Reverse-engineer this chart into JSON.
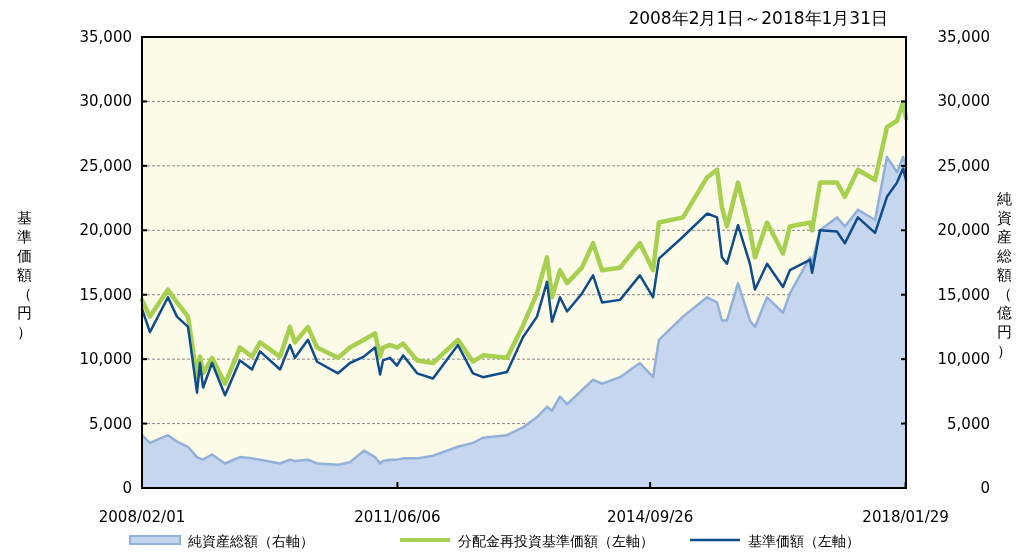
{
  "chart_data": {
    "type": "line",
    "title": "2008年2月1日～2018年1月31日",
    "ylabel": "基準価額（円）",
    "y2label": "純資産総額（億円）",
    "x": [
      "2008-02-01",
      "2008-03-10",
      "2008-06-04",
      "2008-07-17",
      "2008-09-08",
      "2008-10-21",
      "2008-11-04",
      "2008-11-19",
      "2009-01-01",
      "2009-03-04",
      "2009-05-14",
      "2009-07-11",
      "2009-08-18",
      "2009-11-22",
      "2010-01-08",
      "2010-02-01",
      "2010-04-04",
      "2010-05-18",
      "2010-08-26",
      "2010-10-22",
      "2010-12-28",
      "2011-02-19",
      "2011-03-15",
      "2011-03-29",
      "2011-05-01",
      "2011-06-04",
      "2011-07-03",
      "2011-09-08",
      "2011-11-23",
      "2012-03-21",
      "2012-06-01",
      "2012-07-19",
      "2012-11-11",
      "2013-01-26",
      "2013-04-03",
      "2013-05-21",
      "2013-06-14",
      "2013-07-22",
      "2013-08-25",
      "2013-11-04",
      "2013-12-27",
      "2014-02-08",
      "2014-05-05",
      "2014-08-08",
      "2014-10-10",
      "2014-11-07",
      "2015-03-02",
      "2015-06-25",
      "2015-08-12",
      "2015-09-04",
      "2015-09-28",
      "2015-11-20",
      "2016-01-16",
      "2016-02-09",
      "2016-04-07",
      "2016-06-22",
      "2016-07-25",
      "2016-10-29",
      "2016-11-08",
      "2016-12-16",
      "2017-03-07",
      "2017-04-14",
      "2017-06-15",
      "2017-09-05",
      "2017-11-01",
      "2017-12-19",
      "2018-01-17",
      "2018-01-31"
    ],
    "series": [
      {
        "name": "純資産総額（右軸）",
        "type": "area",
        "axis": "y2",
        "color": "#93b0d8",
        "values": [
          4100,
          3500,
          4100,
          3600,
          3200,
          2400,
          2300,
          2200,
          2600,
          1900,
          2400,
          2300,
          2200,
          1900,
          2200,
          2100,
          2200,
          1900,
          1800,
          2000,
          2900,
          2400,
          1900,
          2100,
          2200,
          2200,
          2300,
          2300,
          2500,
          3200,
          3500,
          3900,
          4100,
          4700,
          5500,
          6300,
          6000,
          7100,
          6500,
          7600,
          8400,
          8100,
          8600,
          9700,
          8600,
          11500,
          13300,
          14800,
          14400,
          13000,
          13000,
          15900,
          13000,
          12500,
          14800,
          13600,
          15100,
          17900,
          17500,
          20000,
          21000,
          20300,
          21600,
          20800,
          25700,
          24500,
          25700,
          25000
        ]
      },
      {
        "name": "分配金再投資基準価額（左軸）",
        "type": "line",
        "color": "#a8d050",
        "values": [
          14600,
          13300,
          15400,
          14400,
          13300,
          8600,
          10200,
          8900,
          10100,
          8100,
          10900,
          10200,
          11300,
          10200,
          12500,
          11300,
          12500,
          10900,
          10100,
          10900,
          11500,
          12000,
          10200,
          10900,
          11100,
          10900,
          11200,
          9900,
          9700,
          11500,
          9800,
          10300,
          10100,
          12600,
          15100,
          17900,
          14800,
          16900,
          15900,
          17100,
          19000,
          16900,
          17100,
          19000,
          16900,
          20600,
          21000,
          24100,
          24700,
          21800,
          20300,
          23700,
          20000,
          17900,
          20600,
          18200,
          20300,
          20600,
          20000,
          23700,
          23700,
          22600,
          24700,
          23900,
          28000,
          28500,
          29900,
          28700
        ]
      },
      {
        "name": "基準価額（左軸）",
        "type": "line",
        "color": "#0f4c8c",
        "values": [
          13900,
          12100,
          14800,
          13300,
          12500,
          7400,
          9700,
          7800,
          9700,
          7200,
          9900,
          9200,
          10600,
          9200,
          11100,
          10100,
          11500,
          9800,
          8900,
          9700,
          10200,
          10900,
          8800,
          9900,
          10100,
          9500,
          10300,
          8900,
          8500,
          11100,
          8900,
          8600,
          9000,
          11700,
          13300,
          16000,
          12900,
          14800,
          13700,
          15100,
          16500,
          14400,
          14600,
          16500,
          14800,
          17800,
          19500,
          21300,
          21000,
          17900,
          17400,
          20400,
          17400,
          15400,
          17400,
          15600,
          16900,
          17700,
          16700,
          20000,
          19900,
          19000,
          21000,
          19800,
          22600,
          23700,
          24800,
          23900
        ]
      }
    ],
    "xlim": [
      "2008-02-01",
      "2018-01-31"
    ],
    "xticks": [
      {
        "value": "2008-02-01",
        "label": "2008/02/01"
      },
      {
        "value": "2011-06-06",
        "label": "2011/06/06"
      },
      {
        "value": "2014-09-26",
        "label": "2014/09/26"
      },
      {
        "value": "2018-01-29",
        "label": "2018/01/29"
      }
    ],
    "ylim": [
      0,
      35000
    ],
    "yticks": [
      0,
      {
        "value": 5000,
        "label": "5,000"
      },
      {
        "value": 10000,
        "label": "10,000"
      },
      {
        "value": 15000,
        "label": "15,000"
      },
      {
        "value": 20000,
        "label": "20,000"
      },
      {
        "value": 25000,
        "label": "25,000"
      },
      {
        "value": 30000,
        "label": "30,000"
      },
      {
        "value": 35000,
        "label": "35,000"
      }
    ],
    "y2lim": [
      0,
      35000
    ],
    "y2ticks": [
      0,
      {
        "value": 5000,
        "label": "5,000"
      },
      {
        "value": 10000,
        "label": "10,000"
      },
      {
        "value": 15000,
        "label": "15,000"
      },
      {
        "value": 20000,
        "label": "20,000"
      },
      {
        "value": 25000,
        "label": "25,000"
      },
      {
        "value": 30000,
        "label": "30,000"
      },
      {
        "value": 35000,
        "label": "35,000"
      }
    ],
    "grid": "y",
    "legend": "bottom",
    "line_style": "solid"
  }
}
